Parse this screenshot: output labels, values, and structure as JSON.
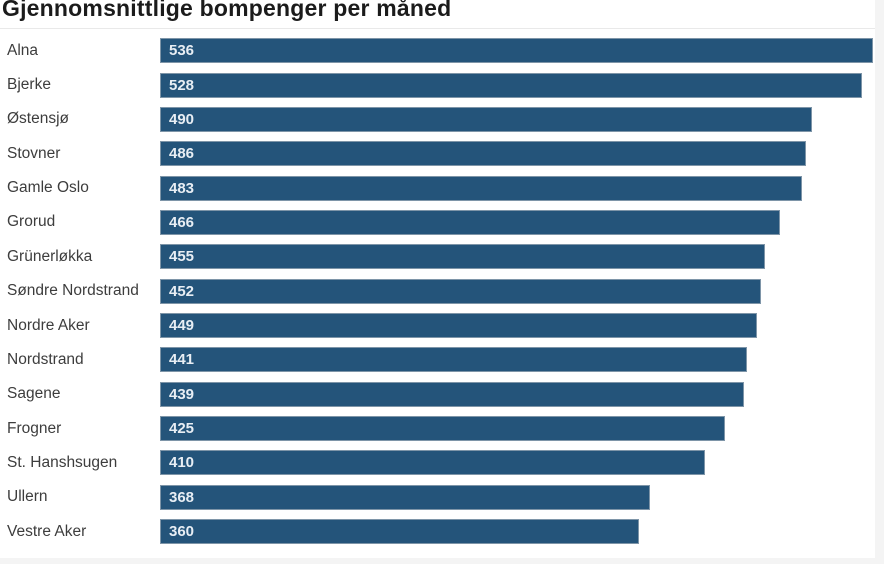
{
  "title": "Gjennomsnittlige bompenger per måned",
  "colors": {
    "bar": "#24547A",
    "bar_border": "#7E95A8",
    "value_text": "#E8EEF4",
    "label_text": "#3D3D3D",
    "title_text": "#1B1B1B",
    "divider": "#E9E9E9",
    "background": "#FFFFFF",
    "page_edge": "#F4F4F4"
  },
  "chart_data": {
    "type": "bar",
    "orientation": "horizontal",
    "title": "Gjennomsnittlige bompenger per måned",
    "categories": [
      "Alna",
      "Bjerke",
      "Østensjø",
      "Stovner",
      "Gamle Oslo",
      "Grorud",
      "Grünerløkka",
      "Søndre Nordstrand",
      "Nordre Aker",
      "Nordstrand",
      "Sagene",
      "Frogner",
      "St. Hanshsugen",
      "Ullern",
      "Vestre Aker"
    ],
    "values": [
      536,
      528,
      490,
      486,
      483,
      466,
      455,
      452,
      449,
      441,
      439,
      425,
      410,
      368,
      360
    ],
    "xlim": [
      0,
      536
    ],
    "value_labels": "inside-start",
    "grid": false,
    "legend": false
  }
}
